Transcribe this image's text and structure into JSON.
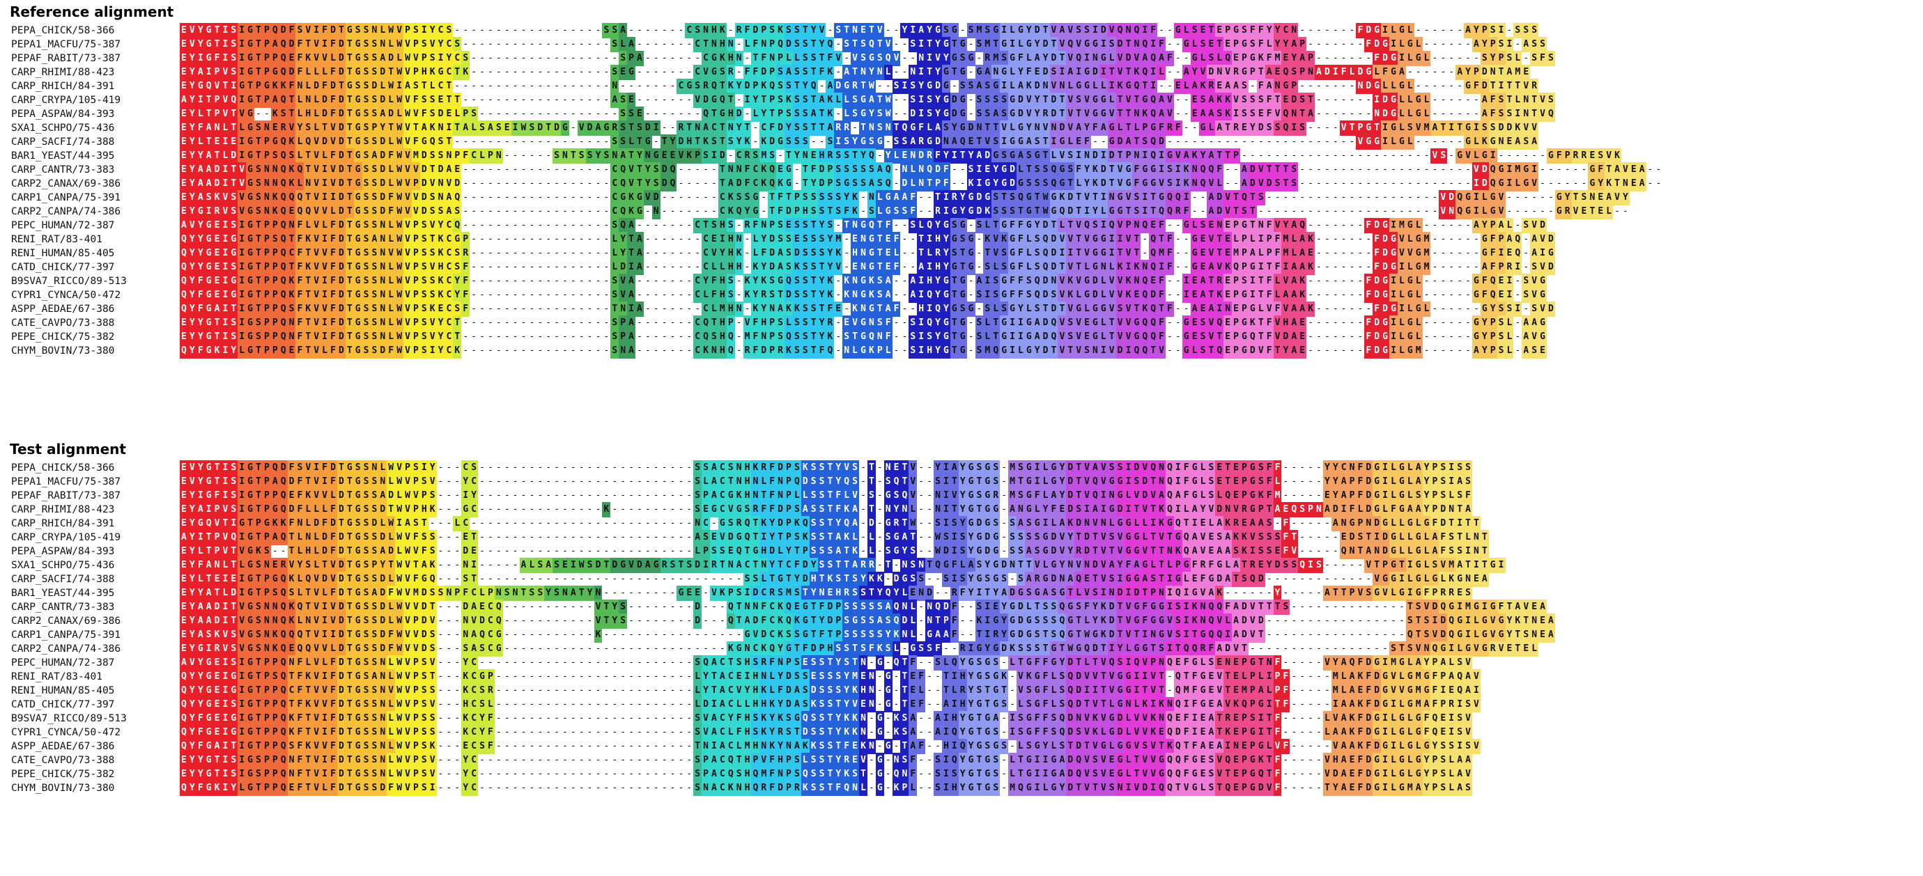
{
  "reference": {
    "title": "Reference alignment",
    "rows": [
      {
        "name": "PEPA_CHICK/58-366",
        "seq": "EVYGTISIGTPQDFSVIFDTGSSNLWVPSIYCS------------------SSA-------CSNHK-RFDPSKSSTYV-STNETV--YIAYGSG-SMSGILGYDTVAVSSIDVQNQIF--GLSETEPGSFFYYCN-------FDGILGL------AYPSI-SSS"
      },
      {
        "name": "PEPA1_MACFU/75-387",
        "seq": "EVYGTISIGTPAQDFTVIFDTGSSNLWVPSVYCS------------------SLA-------CTNHN-LFNPQDSSTYQ-STSQTV--SITYGTG-SMTGILGYDTVQVGGISDTNQIF--GLSETEPGSFLYYAP-------FDGILGL------AYPSI-ASS"
      },
      {
        "name": "PEPAF_RABIT/73-387",
        "seq": "EYIGFISIGTPPQEFKVVLDTGSSADLWVPSIYCS------------------SPA-------CGKHN-TFNPLLSSTFV-VSGSQV--NIVYGSG-RMSGFLAYDTVQINGLVDVAQAF--GLSLQEPGKFMEYAP-------FDGILGL------SYPSL-SFS"
      },
      {
        "name": "CARP_RHIMI/88-423",
        "seq": "EYAIPVSIGTPGQDFLLLFDTGSSDTWVPHKGCTK-----------------SEG-------CVGSR-FFDPSASSTFK-ATNYNL--NITYGTG-GANGLYFEDSIAIGDITVTKQIL--AYVDNVRGPTAEQSPNADIFLDGLFGA------AYPDNTAME"
      },
      {
        "name": "CARP_RHICH/84-391",
        "seq": "EYGQVTIGTPGKKFNLDFDTGSSDLWIASTLCT-------------------N-------CGSRQTKYDPKQSSTYQ-ADGRTW--SISYGDG-SSASGILAKDNVNLGGLLIKGQTI--ELAKREAAS-FANGP-------NDGLLGL------GFDTITTVR"
      },
      {
        "name": "CARP_CRYPA/105-419",
        "seq": "AYITPVQIGTPAQTLNLDFDTGSSDLWVFSSETT------------------ASE-------VDGQT-IYTPSKSSTAKLLSGATW--SISYGDG-SSSSGDVYTDTVSVGGLTVTGQAV--ESAKKVSSSFTEDST-------IDGLLGL------AFSTLNTVS"
      },
      {
        "name": "PEPA_ASPAW/84-393",
        "seq": "EYLTPVTVG--KSTLHLDFDTGSSADLWVFSDELPS-----------------SSE-------QTGHD-LYTPSSSATK-LSGYSW--DISYGDG-SSASGDVYRDTVTVGGVTTNKQAV--EAASKISSEFVQNTA-------NDGLLGL------AFSSINTVQ"
      },
      {
        "name": "SXA1_SCHPO/75-436",
        "seq": "EYFANLTLGSNERVYSLTVDTGSPYTWVTAKNITALSASEIWSDTDG-VDAGRSTSDI--RTNACTNYT-CFDYSSTTARR-TNSNTQGFLASYGDNTTVLGYNVNDVAYFAGLTLPGFRF--GLATREYDSSQIS----VTPGTIGLSVMATITGISSDDKVV"
      },
      {
        "name": "CARP_SACFI/74-388",
        "seq": "EYLTEIEIGTPGQKLQVDVDTGSSDLWVFGQST-------------------SSLTG-TYDHTKSTSYK-KDGSSS--SISYGSG-SSARGDNAQETVSIGGASTIGLEF--GDATSQD-----------------------VGGILGL------GLKGNEASA"
      },
      {
        "name": "BAR1_YEAST/44-395",
        "seq": "EYYATLDIGTPSQSLTVLFDTGSADFWVMDSSNPFCLPN------SNTSSYSNATYNGEEVKPSID-CRSMS-TYNEHRSSTYQ-YLENDRFYITYADGSGASGTLVSINDIDTPNIQIGVAKYATTP-----------------------VS-GVLGI------GFPRRESVK"
      },
      {
        "name": "CARP_CANTR/73-383",
        "seq": "EYAADITVGSNNQKQTVIVDTGSSDLWVVDTDAE------------------CQVTYSDQ-----TNNFCKQEG-TFDPSSSSSAQ-NLNQDF--SIEYGDLTSSQGSFYKDTVGFGGISIKNQQF--ADVTTTS---------------------VDQGIMGI------GFTAVEA--"
      },
      {
        "name": "CARP2_CANAX/69-386",
        "seq": "EYAADITVGSNNQKLNVIVDTGSSDLWVPDVNVD------------------CQVTYSDQ-----TADFCKQKG-TYDPSGSSASQ-DLNTPF--KIGYGDGSSSQGTLYKDTVGFGGVSIKNQVL--ADVDSTS---------------------IDQGILGV------GYKTNEA--"
      },
      {
        "name": "CARP1_CANPA/75-391",
        "seq": "EYASKVSVGSNKQQQTVIIDTGSSDFWVVDSNAQ------------------CGKGVD-------CKSSG-TFTPSSSSSYK-NLGAAF--TIRYGDGSTSQGTWGKDTVTINGVSITGQQI--ADVTQTS---------------------VDQGILGV------GYTSNEAVY"
      },
      {
        "name": "CARP2_CANPA/74-386",
        "seq": "EYGIRVSVGSNKQEQQVVLDTGSSDFWVVDSSAS------------------CQKG-N-------CKQYG-TFDPHSSTSFK-SLGSSF--RIGYGDKSSSTGTWGQDTIYLGGTSITQQRF--ADVTST----------------------VNQGILGV------GRVETEL--"
      },
      {
        "name": "PEPC_HUMAN/72-387",
        "seq": "AVYGEISIGTPPQNFLVLFDTGSSNLWVPSVYCQ------------------SQA-------CTSHS-RFNPSESSTYS-TNGQTF--SLQYGSG-SLTGFFGYDTLTVQSIQVPNQEF--GLSENEPGTNFVYAQ-------FDGIMGL------AYPAL-SVD"
      },
      {
        "name": "RENI_RAT/83-401",
        "seq": "QYYGEIGIGTPSQTFKVIFDTGSANLWVPSTKCGP-----------------LYTA-------CEIHN-LYDSSESSSYM-ENGTEF--TIHYGSG-KVKGFLSQDVVTVGGIIVT-QTF--GEVTELPLIPFMLAK-------FDGVLGM------GFPAQ-AVD"
      },
      {
        "name": "RENI_HUMAN/85-405",
        "seq": "QYYGEIGIGTPPQCFTVVFDTGSSNVWVPSSKCSR-----------------LYTA-------CVYHK-LFDASDSSSYK-HNGTEL--TLRYSTG-TVSGFLSQDIITVGGITVT-QMF--GEVTEMPALPFMLAE-------FDGVVGM------GFIEQ-AIG"
      },
      {
        "name": "CATD_CHICK/77-397",
        "seq": "QYYGEISIGTPPQTFKVVFDTGSSNLWVPSVHCSF-----------------LDIA-------CLLHH-KYDASKSSTYV-ENGTEF--AIHYGTG-SLSGFLSQDTVTLGNLKIKNQIF--GEAVKQPGITFIAAK-------FDGILGM------AFPRI-SVD"
      },
      {
        "name": "B9SVA7_RICCO/89-513",
        "seq": "QYFGEIGIGTPPQKFTVIFDTGSSNLWVPSSKCYF-----------------SVA-------CYFHS-KYKSGQSSTYK-KNGKSA--AIHYGTG-AISGFFSQDNVKVGDLVVKNQEF--IEATREPSITFLVAK-------FDGILGL------GFQEI-SVG"
      },
      {
        "name": "CYPR1_CYNCA/50-472",
        "seq": "QYFGEIGIGTPPQKFTVIFDTGSSNLWVPSSKCYF-----------------SVA-------CLFHS-KYRSTDSSTYK-KNGKSA--AIQYGTG-SISGFFSQDSVKLGDLVVKEQDF--IEATKEPGITFLAAK-------FDGILGL------GFQEI-SVG"
      },
      {
        "name": "ASPP_AEDAE/67-386",
        "seq": "QYFGAITIGTPPQSFKVVFDTGSSNLWVPSKECSF-----------------TNIA-------CLMHN-KYNAKKSSTFE-KNGTAF--HIQYGSG-SLSGYLSTDTVGLGGVSVTKQTF--AEAINEPGLVFVAAK-------FDGILGL------GYSSI-SVD"
      },
      {
        "name": "CATE_CAVPO/73-388",
        "seq": "EYYGTISIGSPPQNFTVIFDTGSSNLWVPSVYCT------------------SPA-------CQTHP-VFHPSLSSTYR-EVGNSF--SIQYGTG-SLTGIIGADQVSVEGLTVVGQQF--GESVQEPGKTFVHAE-------FDGILGL------GYPSL-AAG"
      },
      {
        "name": "PEPE_CHICK/75-382",
        "seq": "EYYGTISIGSPPQNFTVIFDTGSSNLWVPSVYCT------------------SPA-------CQSHQ-MFNPSQSSTYK-STGQNF--SISYGTG-SLTGIIGADQVSVEGLTVVGQQF--GESVTEPGQTFVDAE-------FDGILGL------GYPSL-AVG"
      },
      {
        "name": "CHYM_BOVIN/73-380",
        "seq": "QYFGKIYLGTPPQEFTVLFDTGSSDFWVPSIYCK------------------SNA-------CKNHQ-RFDPRKSSTFQ-NLGKPL--SIHYGTG-SMQGILGYDTVTVSNIVDIQQTV--GLSTQEPGDVFTYAE-------FDGILGM------AYPSL-ASE"
      }
    ]
  },
  "test": {
    "title": "Test alignment",
    "rows": [
      {
        "name": "PEPA_CHICK/58-366",
        "seq": "EVYGTISIGTPQDFSVIFDTGSSNLWVPSIY---CS--------------------------SSACSNHKRFDPSKSSTYVS-T-NETV--YIAYGSGS-MSGILGYDTVAVSSIDVQNQIFGLSETEPGSFF-----YYCNFDGILGLAYPSISS"
      },
      {
        "name": "PEPA1_MACFU/75-387",
        "seq": "EVYGTISIGTPAQDFTVIFDTGSSNLWVPSV---YC--------------------------SLACTNHNLFNPQDSSTYQS-T-SQTV--SITYGTGS-MTGILGYDTVQVGGISDTNQIFGLSETEPGSFL-----YYAPFDGILGLAYPSIAS"
      },
      {
        "name": "PEPAF_RABIT/73-387",
        "seq": "EYIGFISIGTPPQEFKVVLDTGSSADLWVPS---IY--------------------------SPACGKHNTFNPLLSSTFLV-S-GSQV--NIVYGSGR-MSGFLAYDTVQINGLVDVAQAFGLSLQEPGKFM-----EYAPFDGILGLSYPSLSF"
      },
      {
        "name": "CARP_RHIMI/88-423",
        "seq": "EYAIPVSIGTPGQDFLLLFDTGSSDTWVPHK---GC---------------K----------SEGCVGSRFFDPSASSTFKA-T-NYNL--NITYGTGG-ANGLYFEDSIAIGDITVTKQILAYVDNVRGPTAEQSPNADIFLDGLFGAAYPDNTA"
      },
      {
        "name": "CARP_RHICH/84-391",
        "seq": "EYGQVTIGTPGKKFNLDFDTGSSDLWIAST---LC---------------------------NC-GSRQTKYDPKQSSTYQA-D-GRTW--SISYGDGS-SASGILAKDNVNLGGLLIKGQTIELAKREAAS-F-----ANGPNDGLLGLGFDTITT"
      },
      {
        "name": "CARP_CRYPA/105-419",
        "seq": "AYITPVQIGTPAQTLNLDFDTGSSDLWVFSS---ET--------------------------ASEVDGQTIYTPSKSSTAKL-L-SGAT--WSISYGDG-SSSSGDVYTDTVSVGGLTVTGQAVESAKKVSSSFT-----EDSTIDGLLGLAFSTLNT"
      },
      {
        "name": "PEPA_ASPAW/84-393",
        "seq": "EYLTPVTVGKS--TLHLDFDTGSSADLWVFS---DE--------------------------LPSSEQTGHDLYTPSSSATK-L-SGYS--WDISYGDG-SSASGDVYRDTVTVGGVTTNKQAVEAASKISSEFV-----QNTANDGLLGLAFSSINT"
      },
      {
        "name": "SXA1_SCHPO/75-436",
        "seq": "EYFANLTLGSNERVYSLTVDTGSPYTWVTAK---NI-----ALSASEIWSDTDGVDAGRSTSDIRTNACTNYTCFDYSSTTARR-T-NSNTQGFLASYGDNTTVLGYNVNDVAYFAGLTLPGFRFGLATREYDSSQIS-----VTPGTIGLSVMATITGI"
      },
      {
        "name": "CARP_SACFI/74-388",
        "seq": "EYLTEIEIGTPGQKLQVDVDTGSSDLWVFGQ---ST--------------------------------SSLTGTYDHTKSTSYKK-DGSS--SISYGSGS-SARGDNAQETVSIGGASTIGLEFGDATSQD-------------VGGILGLGLKGNEA"
      },
      {
        "name": "BAR1_YEAST/44-395",
        "seq": "EYYATLDIGTPSQSLTVLFDTGSADFWVMDSSNPFCLPNSNTSSYSNATYN---------GEE-VKPSIDCRSMSTYNEHRSSTYQYLEND--RFYITYADGSGASGTLVSINDIDTPNIQIGVAK------Y-----ATTPVSGVLGIGFPRRES"
      },
      {
        "name": "CARP_CANTR/73-383",
        "seq": "EYAADITVGSNNQKQTVIVDTGSSDLWVVDT---DAECQ-----------VTYS--------D---QTNNFCKQEGTFDPSSSSSAQNL-NQDF--SIEYGDLTSSQGSFYKDTVGFGGISIKNQQFADVTTTS--------------TSVDQGIMGIGFTAVEA"
      },
      {
        "name": "CARP2_CANAX/69-386",
        "seq": "EYAADITVGSNNQKLNVIVDTGSSDLWVPDV---NVDCQ-----------VTYS--------D---QTADFCKQKGTYDPSGSSASQDL-NTPF--KIGYGDGSSSQGTLYKDTVGFGGVSIKNQVLADVD-----------------STSIDQGILGVGYKTNEA"
      },
      {
        "name": "CARP1_CANPA/75-391",
        "seq": "EYASKVSVGSNKQQQTVIIDTGSSDFWVVDS---NAQCG-----------K-----------------GVDCKSSGTFTPSSSSSYKNL-GAAF--TIRYGDGSTSQGTWGKDTVTINGVSITGQQIADVT-----------------QTSVDQGILGVGYTSNEA"
      },
      {
        "name": "CARP2_CANPA/74-386",
        "seq": "EYGIRVSVGSNKQEQQVVLDTGSSDFWVVDS---SASCG---------------------------KGNCKQYGTFDPHSSTSFKSL-GSSF--RIGYGDKSSSTGTWGQDTIYLGGTSITQQRFADVT-----------------STSVNQGILGVGRVETEL"
      },
      {
        "name": "PEPC_HUMAN/72-387",
        "seq": "AVYGEISIGTPPQNFLVLFDTGSSNLWVPSV---YC--------------------------SQACTSHSRFNPSESSTYSTN-G-QTF--SLQYGSGS-LTGFFGYDTLTVQSIQVPNQEFGLSENEPGTNF-----VYAQFDGIMGLAYPALSV"
      },
      {
        "name": "RENI_RAT/83-401",
        "seq": "QYYGEIGIGTPSQTFKVIFDTGSANLWVPST---KCGP------------------------LYTACEIHNLYDSSESSSYMEN-G-TEF--TIHYGSGK-VKGFLSQDVVTVGGIIVT-QTFGEVTELPLIPF-----MLAKFDGVLGMGFPAQAV"
      },
      {
        "name": "RENI_HUMAN/85-405",
        "seq": "QYYGEIGIGTPPQCFTVVFDTGSSNVWVPSS---KCSR------------------------LYTACVYHKLFDASDSSSYKHN-G-TEL--TLRYSTGT-VSGFLSQDIITVGGITVT-QMFGEVTEMPALPF-----MLAEFDGVVGMGFIEQAI"
      },
      {
        "name": "CATD_CHICK/77-397",
        "seq": "QYYGEISIGTPPQTFKVVFDTGSSNLWVPSV---HCSL------------------------LDIACLLHHKYDASKSSTYVEN-G-TEF--AIHYGTGS-LSGFLSQDTVTLGNLKIKNQIFGEAVKQPGITF-----IAAKFDGILGMAFPRISV"
      },
      {
        "name": "B9SVA7_RICCO/89-513",
        "seq": "QYFGEIGIGTPPQKFTVIFDTGSSNLWVPSS---KCYF------------------------SVACYFHSKYKSGQSSTYKKN-G-KSA--AIHYGTGA-ISGFFSQDNVKVGDLVVKNQEFIEATREPSITF-----LVAKFDGILGLGFQEISV"
      },
      {
        "name": "CYPR1_CYNCA/50-472",
        "seq": "QYFGEIGIGTPPQKFTVIFDTGSSNLWVPSS---KCYF------------------------SVACLFHSKYRSTDSSTYKKN-G-KSA--AIQYGTGS-ISGFFSQDSVKLGDLVVKEQDFIEATKEPGITF-----LAAKFDGILGLGFQEISV"
      },
      {
        "name": "ASPP_AEDAE/67-386",
        "seq": "QYFGAITIGTPPQSFKVVFDTGSSNLWVPSK---ECSF------------------------TNIACLMHNKYNAKKSSTFEKN-G-TAF--HIQYGSGS-LSGYLSTDTVGLGGVSVTKQTFAEAINEPGLVF-----VAAKFDGILGLGYSSISV"
      },
      {
        "name": "CATE_CAVPO/73-388",
        "seq": "EYYGTISIGSPPQNFTVIFDTGSSNLWVPSV---YC--------------------------SPACQTHPVFHPSLSSTYREV-G-NSF--SIQYGTGS-LTGIIGADQVSVEGLTVVGQQFGESVQEPGKTF-----VHAEFDGILGLGYPSLAA"
      },
      {
        "name": "PEPE_CHICK/75-382",
        "seq": "EYYGTISIGSPPQNFTVIFDTGSSNLWVPSV---YC--------------------------SPACQSHQMFNPSQSSTYKST-G-QNF--SISYGTGS-LTGIIGADQVSVEGLTVVGQQFGESVTEPGQTF-----VDAEFDGILGLGYPSLAV"
      },
      {
        "name": "CHYM_BOVIN/73-380",
        "seq": "QYFGKIYLGTPPQEFTVLFDTGSSDFWVPSI---YC--------------------------SNACKNHQRFDPRKSSTFQNL-G-KPL--SIHYGTGS-MQGILGYDTVTVSNIVDIQQTVGLSTQEPGDVF-----TYAEFDGILGMAYPSLAS"
      }
    ]
  },
  "palette": [
    "#e8202a",
    "#ef6a3a",
    "#f59b3b",
    "#f7c137",
    "#f6ec2e",
    "#cdea3c",
    "#8fd650",
    "#55ba55",
    "#3f9a5e",
    "#3bbf96",
    "#34d8cf",
    "#2fc7ee",
    "#2561d8",
    "#1f1fbd",
    "#6a6ee0",
    "#8f9bf0",
    "#a673e6",
    "#c24fe0",
    "#e23ad6",
    "#ef7cd7",
    "#ec4a8a",
    "#e41f2f",
    "#f4a060",
    "#f7c860",
    "#f6e070"
  ]
}
